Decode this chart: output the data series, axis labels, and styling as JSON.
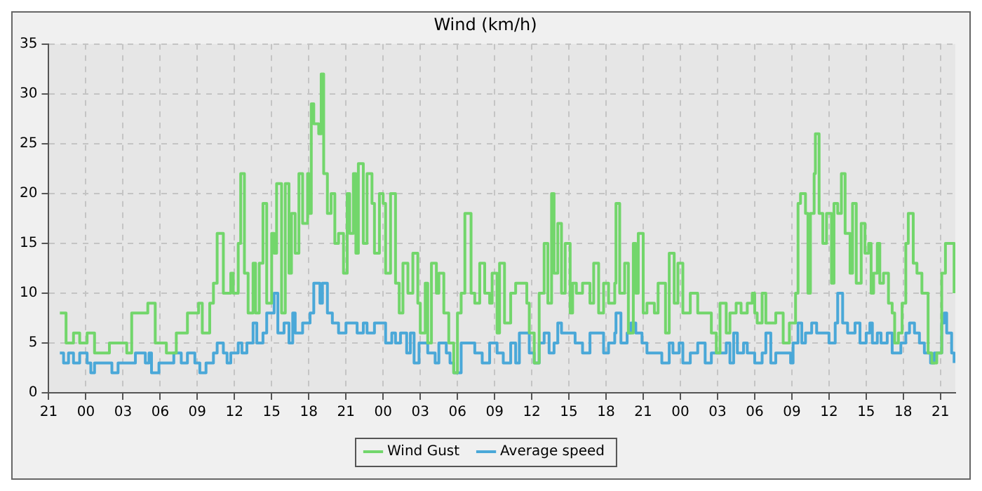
{
  "chart_data": {
    "type": "step",
    "title": "Wind (km/h)",
    "xlim": [
      "--01-01T21:00",
      "--01-04T22:12"
    ],
    "ylim": [
      0,
      35
    ],
    "xticks": [
      {
        "value": "--01-01T21:00",
        "label": "21"
      },
      {
        "value": "--01-02T00:00",
        "label": "00"
      },
      {
        "value": "--01-02T03:00",
        "label": "03"
      },
      {
        "value": "--01-02T06:00",
        "label": "06"
      },
      {
        "value": "--01-02T09:00",
        "label": "09"
      },
      {
        "value": "--01-02T12:00",
        "label": "12"
      },
      {
        "value": "--01-02T15:00",
        "label": "15"
      },
      {
        "value": "--01-02T18:00",
        "label": "18"
      },
      {
        "value": "--01-02T21:00",
        "label": "21"
      },
      {
        "value": "--01-03T00:00",
        "label": "00"
      },
      {
        "value": "--01-03T03:00",
        "label": "03"
      },
      {
        "value": "--01-03T06:00",
        "label": "06"
      },
      {
        "value": "--01-03T09:00",
        "label": "09"
      },
      {
        "value": "--01-03T12:00",
        "label": "12"
      },
      {
        "value": "--01-03T15:00",
        "label": "15"
      },
      {
        "value": "--01-03T18:00",
        "label": "18"
      },
      {
        "value": "--01-03T21:00",
        "label": "21"
      },
      {
        "value": "--01-04T00:00",
        "label": "00"
      },
      {
        "value": "--01-04T03:00",
        "label": "03"
      },
      {
        "value": "--01-04T06:00",
        "label": "06"
      },
      {
        "value": "--01-04T09:00",
        "label": "09"
      },
      {
        "value": "--01-04T12:00",
        "label": "12"
      },
      {
        "value": "--01-04T15:00",
        "label": "15"
      },
      {
        "value": "--01-04T18:00",
        "label": "18"
      },
      {
        "value": "--01-04T21:00",
        "label": "21"
      }
    ],
    "yticks": [
      0,
      5,
      10,
      15,
      20,
      25,
      30,
      35
    ],
    "grid": true,
    "legend": "bottom",
    "marker": "none",
    "line_style": "solid",
    "series": [
      {
        "name": "Wind Gust",
        "color": "#72d66b",
        "x": [
          "--01-01T21:54",
          "--01-01T22:24",
          "--01-01T23:00",
          "--01-01T23:30",
          "--01-02T00:06",
          "--01-02T00:42",
          "--01-02T01:54",
          "--01-02T03:18",
          "--01-02T03:42",
          "--01-02T05:00",
          "--01-02T05:36",
          "--01-02T06:30",
          "--01-02T07:18",
          "--01-02T08:12",
          "--01-02T09:06",
          "--01-02T09:24",
          "--01-02T10:00",
          "--01-02T10:18",
          "--01-02T10:36",
          "--01-02T11:06",
          "--01-02T11:42",
          "--01-02T11:54",
          "--01-02T12:18",
          "--01-02T12:30",
          "--01-02T12:48",
          "--01-02T13:06",
          "--01-02T13:30",
          "--01-02T13:42",
          "--01-02T14:00",
          "--01-02T14:18",
          "--01-02T14:36",
          "--01-02T15:00",
          "--01-02T15:12",
          "--01-02T15:24",
          "--01-02T15:48",
          "--01-02T16:06",
          "--01-02T16:24",
          "--01-02T16:36",
          "--01-02T16:54",
          "--01-02T17:12",
          "--01-02T17:30",
          "--01-02T17:54",
          "--01-02T18:00",
          "--01-02T18:12",
          "--01-02T18:24",
          "--01-02T18:48",
          "--01-02T19:00",
          "--01-02T19:12",
          "--01-02T19:30",
          "--01-02T19:48",
          "--01-02T20:06",
          "--01-02T20:24",
          "--01-02T20:48",
          "--01-02T21:06",
          "--01-02T21:18",
          "--01-02T21:36",
          "--01-02T21:48",
          "--01-02T22:00",
          "--01-02T22:24",
          "--01-02T22:42",
          "--01-02T23:06",
          "--01-02T23:18",
          "--01-02T23:42",
          "--01-03T00:00",
          "--01-03T00:12",
          "--01-03T00:36",
          "--01-03T01:00",
          "--01-03T01:18",
          "--01-03T01:36",
          "--01-03T02:00",
          "--01-03T02:24",
          "--01-03T02:48",
          "--01-03T03:00",
          "--01-03T03:24",
          "--01-03T03:36",
          "--01-03T03:54",
          "--01-03T04:18",
          "--01-03T04:30",
          "--01-03T04:54",
          "--01-03T05:18",
          "--01-03T05:42",
          "--01-03T06:00",
          "--01-03T06:18",
          "--01-03T06:36",
          "--01-03T07:06",
          "--01-03T07:24",
          "--01-03T07:48",
          "--01-03T08:12",
          "--01-03T08:36",
          "--01-03T08:48",
          "--01-03T09:12",
          "--01-03T09:24",
          "--01-03T09:48",
          "--01-03T10:18",
          "--01-03T10:42",
          "--01-03T11:12",
          "--01-03T11:36",
          "--01-03T11:48",
          "--01-03T12:12",
          "--01-03T12:36",
          "--01-03T13:00",
          "--01-03T13:18",
          "--01-03T13:36",
          "--01-03T13:48",
          "--01-03T14:06",
          "--01-03T14:24",
          "--01-03T14:42",
          "--01-03T15:06",
          "--01-03T15:18",
          "--01-03T15:36",
          "--01-03T16:06",
          "--01-03T16:42",
          "--01-03T17:00",
          "--01-03T17:24",
          "--01-03T17:48",
          "--01-03T18:12",
          "--01-03T18:42",
          "--01-03T18:48",
          "--01-03T19:06",
          "--01-03T19:30",
          "--01-03T19:48",
          "--01-03T20:12",
          "--01-03T20:24",
          "--01-03T20:36",
          "--01-03T21:00",
          "--01-03T21:18",
          "--01-03T21:54",
          "--01-03T22:12",
          "--01-03T22:48",
          "--01-03T23:06",
          "--01-03T23:30",
          "--01-03T23:48",
          "--01-04T00:12",
          "--01-04T00:48",
          "--01-04T01:24",
          "--01-04T02:00",
          "--01-04T02:30",
          "--01-04T02:54",
          "--01-04T03:12",
          "--01-04T03:42",
          "--01-04T04:00",
          "--01-04T04:30",
          "--01-04T04:54",
          "--01-04T05:24",
          "--01-04T05:48",
          "--01-04T06:00",
          "--01-04T06:12",
          "--01-04T06:36",
          "--01-04T06:54",
          "--01-04T07:24",
          "--01-04T07:42",
          "--01-04T08:18",
          "--01-04T08:48",
          "--01-04T09:18",
          "--01-04T09:30",
          "--01-04T09:42",
          "--01-04T10:06",
          "--01-04T10:18",
          "--01-04T10:30",
          "--01-04T10:48",
          "--01-04T10:54",
          "--01-04T11:12",
          "--01-04T11:30",
          "--01-04T11:48",
          "--01-04T12:12",
          "--01-04T12:24",
          "--01-04T12:42",
          "--01-04T13:00",
          "--01-04T13:18",
          "--01-04T13:42",
          "--01-04T13:54",
          "--01-04T14:12",
          "--01-04T14:36",
          "--01-04T14:54",
          "--01-04T15:12",
          "--01-04T15:24",
          "--01-04T15:36",
          "--01-04T15:54",
          "--01-04T16:06",
          "--01-04T16:24",
          "--01-04T16:48",
          "--01-04T17:06",
          "--01-04T17:18",
          "--01-04T17:36",
          "--01-04T17:54",
          "--01-04T18:12",
          "--01-04T18:24",
          "--01-04T18:48",
          "--01-04T19:06",
          "--01-04T19:30",
          "--01-04T20:00",
          "--01-04T20:18",
          "--01-04T20:42",
          "--01-04T21:06",
          "--01-04T21:24",
          "--01-04T21:54",
          "--01-04T22:06"
        ],
        "values": [
          8,
          5,
          6,
          5,
          6,
          4,
          5,
          4,
          8,
          9,
          5,
          4,
          6,
          8,
          9,
          6,
          9,
          11,
          16,
          10,
          12,
          10,
          15,
          22,
          12,
          8,
          13,
          8,
          13,
          19,
          9,
          16,
          14,
          21,
          8,
          21,
          12,
          18,
          14,
          22,
          17,
          22,
          18,
          29,
          27,
          26,
          32,
          22,
          18,
          20,
          15,
          16,
          12,
          20,
          16,
          22,
          14,
          23,
          15,
          22,
          19,
          14,
          20,
          19,
          12,
          20,
          11,
          8,
          13,
          10,
          14,
          9,
          6,
          11,
          5,
          13,
          10,
          12,
          8,
          5,
          2,
          8,
          10,
          18,
          10,
          9,
          13,
          10,
          9,
          12,
          6,
          13,
          7,
          10,
          11,
          11,
          9,
          6,
          3,
          10,
          15,
          9,
          20,
          12,
          17,
          10,
          15,
          8,
          11,
          10,
          11,
          9,
          13,
          8,
          11,
          9,
          11,
          19,
          10,
          13,
          6,
          15,
          10,
          16,
          8,
          9,
          8,
          11,
          6,
          14,
          9,
          13,
          8,
          10,
          8,
          8,
          6,
          4,
          9,
          6,
          8,
          9,
          8,
          9,
          10,
          8,
          7,
          10,
          7,
          7,
          8,
          5,
          7,
          10,
          19,
          20,
          18,
          10,
          18,
          22,
          26,
          18,
          15,
          18,
          11,
          19,
          18,
          22,
          16,
          12,
          19,
          11,
          17,
          14,
          15,
          10,
          12,
          15,
          11,
          12,
          9,
          8,
          5,
          6,
          9,
          15,
          18,
          13,
          12,
          10,
          4,
          3,
          4,
          12,
          15,
          15,
          10
        ]
      },
      {
        "name": "Average speed",
        "color": "#4aa8d8",
        "x": [
          "--01-01T21:54",
          "--01-01T22:12",
          "--01-01T22:36",
          "--01-01T23:00",
          "--01-01T23:30",
          "--01-02T00:06",
          "--01-02T00:24",
          "--01-02T00:42",
          "--01-02T01:54",
          "--01-02T02:06",
          "--01-02T02:36",
          "--01-02T04:00",
          "--01-02T04:48",
          "--01-02T05:06",
          "--01-02T05:18",
          "--01-02T05:54",
          "--01-02T07:06",
          "--01-02T07:42",
          "--01-02T08:12",
          "--01-02T08:48",
          "--01-02T09:12",
          "--01-02T09:42",
          "--01-02T10:18",
          "--01-02T10:36",
          "--01-02T11:06",
          "--01-02T11:24",
          "--01-02T11:42",
          "--01-02T12:18",
          "--01-02T12:36",
          "--01-02T13:00",
          "--01-02T13:30",
          "--01-02T13:48",
          "--01-02T14:18",
          "--01-02T14:36",
          "--01-02T15:12",
          "--01-02T15:30",
          "--01-02T16:00",
          "--01-02T16:24",
          "--01-02T16:42",
          "--01-02T16:54",
          "--01-02T17:30",
          "--01-02T18:06",
          "--01-02T18:24",
          "--01-02T18:54",
          "--01-02T19:06",
          "--01-02T19:30",
          "--01-02T19:54",
          "--01-02T20:24",
          "--01-02T21:00",
          "--01-02T21:54",
          "--01-02T22:24",
          "--01-02T22:42",
          "--01-02T23:18",
          "--01-03T00:12",
          "--01-03T00:42",
          "--01-03T01:00",
          "--01-03T01:24",
          "--01-03T01:54",
          "--01-03T02:12",
          "--01-03T02:30",
          "--01-03T02:54",
          "--01-03T03:36",
          "--01-03T04:12",
          "--01-03T04:30",
          "--01-03T05:06",
          "--01-03T05:24",
          "--01-03T05:42",
          "--01-03T06:18",
          "--01-03T07:24",
          "--01-03T08:00",
          "--01-03T08:36",
          "--01-03T09:12",
          "--01-03T09:42",
          "--01-03T10:18",
          "--01-03T10:42",
          "--01-03T11:00",
          "--01-03T11:48",
          "--01-03T12:12",
          "--01-03T12:36",
          "--01-03T13:00",
          "--01-03T13:24",
          "--01-03T13:48",
          "--01-03T14:06",
          "--01-03T14:24",
          "--01-03T15:30",
          "--01-03T16:06",
          "--01-03T16:42",
          "--01-03T17:48",
          "--01-03T18:12",
          "--01-03T18:42",
          "--01-03T18:48",
          "--01-03T19:12",
          "--01-03T19:42",
          "--01-03T20:00",
          "--01-03T20:24",
          "--01-03T20:54",
          "--01-03T21:18",
          "--01-03T22:30",
          "--01-03T23:06",
          "--01-03T23:24",
          "--01-03T23:54",
          "--01-04T00:12",
          "--01-04T00:48",
          "--01-04T01:24",
          "--01-04T02:00",
          "--01-04T02:30",
          "--01-04T03:42",
          "--01-04T04:00",
          "--01-04T04:18",
          "--01-04T04:36",
          "--01-04T05:06",
          "--01-04T05:24",
          "--01-04T06:00",
          "--01-04T06:36",
          "--01-04T06:54",
          "--01-04T07:18",
          "--01-04T07:42",
          "--01-04T08:54",
          "--01-04T09:06",
          "--01-04T09:30",
          "--01-04T09:48",
          "--01-04T10:06",
          "--01-04T10:36",
          "--01-04T11:00",
          "--01-04T12:00",
          "--01-04T12:30",
          "--01-04T12:42",
          "--01-04T13:06",
          "--01-04T13:30",
          "--01-04T14:06",
          "--01-04T14:30",
          "--01-04T15:00",
          "--01-04T15:18",
          "--01-04T15:30",
          "--01-04T15:54",
          "--01-04T16:12",
          "--01-04T16:42",
          "--01-04T17:06",
          "--01-04T17:48",
          "--01-04T18:12",
          "--01-04T18:30",
          "--01-04T18:54",
          "--01-04T19:18",
          "--01-04T19:42",
          "--01-04T20:12",
          "--01-04T20:30",
          "--01-04T21:06",
          "--01-04T21:18",
          "--01-04T21:30",
          "--01-04T21:54",
          "--01-04T22:06"
        ],
        "values": [
          4,
          3,
          4,
          3,
          4,
          3,
          2,
          3,
          3,
          2,
          3,
          4,
          3,
          4,
          2,
          3,
          4,
          3,
          4,
          3,
          2,
          3,
          4,
          5,
          4,
          3,
          4,
          5,
          4,
          5,
          7,
          5,
          6,
          8,
          10,
          6,
          7,
          5,
          8,
          6,
          7,
          8,
          11,
          9,
          11,
          8,
          7,
          6,
          7,
          6,
          7,
          6,
          7,
          5,
          6,
          5,
          6,
          4,
          6,
          3,
          5,
          4,
          3,
          5,
          4,
          3,
          2,
          5,
          4,
          3,
          5,
          4,
          3,
          5,
          3,
          6,
          4,
          3,
          5,
          6,
          4,
          5,
          7,
          6,
          5,
          4,
          6,
          4,
          5,
          6,
          8,
          5,
          6,
          7,
          6,
          5,
          4,
          3,
          5,
          4,
          5,
          3,
          4,
          5,
          3,
          4,
          5,
          3,
          6,
          4,
          5,
          4,
          3,
          4,
          6,
          3,
          4,
          3,
          5,
          7,
          5,
          6,
          7,
          6,
          5,
          7,
          10,
          7,
          6,
          7,
          5,
          6,
          7,
          5,
          6,
          5,
          6,
          4,
          5,
          6,
          7,
          6,
          5,
          4,
          3,
          4,
          7,
          8,
          6,
          4,
          3
        ]
      }
    ]
  }
}
